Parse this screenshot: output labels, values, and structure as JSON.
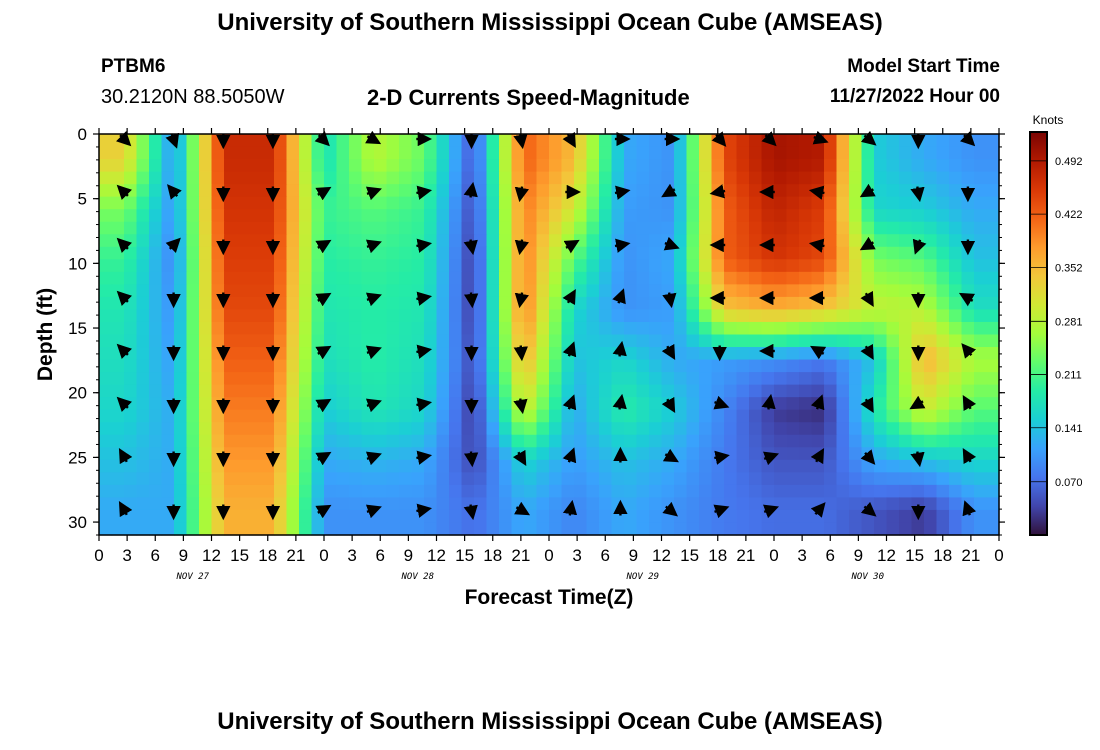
{
  "header": {
    "title": "University of Southern Mississippi Ocean Cube (AMSEAS)",
    "station": "PTBM6",
    "coords": "30.2120N  88.5050W",
    "chart_title": "2-D Currents Speed-Magnitude",
    "model_label": "Model Start Time",
    "model_time": "11/27/2022 Hour 00"
  },
  "footer": {
    "title": "University of Southern Mississippi Ocean Cube (AMSEAS)"
  },
  "chart_data": {
    "type": "heatmap",
    "title": "2-D Currents Speed-Magnitude",
    "xlabel": "Forecast Time(Z)",
    "ylabel": "Depth (ft)",
    "x_range_hours": [
      0,
      96
    ],
    "ylim": [
      0,
      31
    ],
    "y_ticks": [
      0,
      5,
      10,
      15,
      20,
      25,
      30
    ],
    "x_ticks_hours": [
      0,
      3,
      6,
      9,
      12,
      15,
      18,
      21,
      24,
      27,
      30,
      33,
      36,
      39,
      42,
      45,
      48,
      51,
      54,
      57,
      60,
      63,
      66,
      69,
      72,
      75,
      78,
      81,
      84,
      87,
      90,
      93,
      96
    ],
    "x_tick_labels": [
      "0",
      "3",
      "6",
      "9",
      "12",
      "15",
      "18",
      "21",
      "0",
      "3",
      "6",
      "9",
      "12",
      "15",
      "18",
      "21",
      "0",
      "3",
      "6",
      "9",
      "12",
      "15",
      "18",
      "21",
      "0",
      "3",
      "6",
      "9",
      "12",
      "15",
      "18",
      "21",
      "0"
    ],
    "date_labels": [
      {
        "hour": 10,
        "label": "NOV 27"
      },
      {
        "hour": 34,
        "label": "NOV 28"
      },
      {
        "hour": 58,
        "label": "NOV 29"
      },
      {
        "hour": 82,
        "label": "NOV 30"
      }
    ],
    "colorbar": {
      "unit": "Knots",
      "min": 0.0,
      "max": 0.53,
      "ticks": [
        "0.492",
        "0.422",
        "0.352",
        "0.281",
        "0.211",
        "0.141",
        "0.070"
      ],
      "colors": [
        "#30123b",
        "#4145ab",
        "#4675ed",
        "#39a2fc",
        "#1bcfd4",
        "#24eca6",
        "#61fc6c",
        "#a4fc3b",
        "#d1e834",
        "#f3c63a",
        "#fe9b2d",
        "#f36315",
        "#d93806",
        "#b11901",
        "#7a0402"
      ]
    },
    "speed_knots": [
      [
        0.33,
        0.1,
        0.47,
        0.47,
        0.17,
        0.28,
        0.23,
        0.05,
        0.42,
        0.35,
        0.12,
        0.1,
        0.44,
        0.5,
        0.49,
        0.15,
        0.12,
        0.1
      ],
      [
        0.24,
        0.1,
        0.46,
        0.46,
        0.2,
        0.22,
        0.2,
        0.04,
        0.4,
        0.3,
        0.11,
        0.1,
        0.42,
        0.48,
        0.45,
        0.16,
        0.15,
        0.12
      ],
      [
        0.2,
        0.09,
        0.45,
        0.45,
        0.19,
        0.2,
        0.19,
        0.03,
        0.4,
        0.22,
        0.1,
        0.12,
        0.42,
        0.46,
        0.44,
        0.24,
        0.22,
        0.14
      ],
      [
        0.18,
        0.1,
        0.44,
        0.44,
        0.18,
        0.19,
        0.18,
        0.03,
        0.4,
        0.16,
        0.1,
        0.11,
        0.34,
        0.36,
        0.34,
        0.29,
        0.28,
        0.17
      ],
      [
        0.17,
        0.11,
        0.42,
        0.42,
        0.17,
        0.19,
        0.17,
        0.04,
        0.36,
        0.14,
        0.16,
        0.12,
        0.11,
        0.1,
        0.08,
        0.14,
        0.36,
        0.27
      ],
      [
        0.16,
        0.12,
        0.4,
        0.4,
        0.15,
        0.18,
        0.16,
        0.03,
        0.3,
        0.12,
        0.19,
        0.15,
        0.09,
        0.03,
        0.02,
        0.18,
        0.3,
        0.22
      ],
      [
        0.14,
        0.12,
        0.38,
        0.38,
        0.12,
        0.13,
        0.12,
        0.04,
        0.16,
        0.11,
        0.14,
        0.12,
        0.08,
        0.05,
        0.05,
        0.12,
        0.14,
        0.16
      ],
      [
        0.12,
        0.12,
        0.36,
        0.36,
        0.1,
        0.1,
        0.1,
        0.07,
        0.12,
        0.09,
        0.12,
        0.1,
        0.08,
        0.07,
        0.07,
        0.05,
        0.03,
        0.1
      ]
    ],
    "vector_direction_deg": [
      [
        135,
        160,
        180,
        180,
        135,
        120,
        90,
        180,
        170,
        150,
        90,
        90,
        140,
        135,
        110,
        130,
        180,
        135
      ],
      [
        315,
        320,
        180,
        180,
        60,
        70,
        80,
        10,
        190,
        90,
        80,
        240,
        260,
        270,
        280,
        240,
        170,
        180
      ],
      [
        315,
        45,
        180,
        180,
        60,
        70,
        80,
        170,
        190,
        60,
        80,
        110,
        270,
        270,
        280,
        240,
        200,
        180
      ],
      [
        315,
        180,
        180,
        180,
        60,
        70,
        80,
        175,
        190,
        30,
        20,
        170,
        270,
        270,
        270,
        150,
        180,
        300
      ],
      [
        315,
        180,
        180,
        180,
        60,
        70,
        80,
        180,
        175,
        20,
        10,
        150,
        180,
        270,
        300,
        150,
        180,
        320
      ],
      [
        315,
        180,
        180,
        180,
        60,
        70,
        80,
        180,
        170,
        20,
        10,
        150,
        110,
        10,
        20,
        150,
        240,
        330
      ],
      [
        330,
        180,
        180,
        180,
        60,
        70,
        80,
        175,
        150,
        20,
        0,
        120,
        80,
        70,
        30,
        140,
        170,
        330
      ],
      [
        330,
        180,
        180,
        180,
        60,
        70,
        80,
        170,
        120,
        10,
        0,
        130,
        70,
        70,
        40,
        130,
        180,
        340
      ]
    ]
  }
}
